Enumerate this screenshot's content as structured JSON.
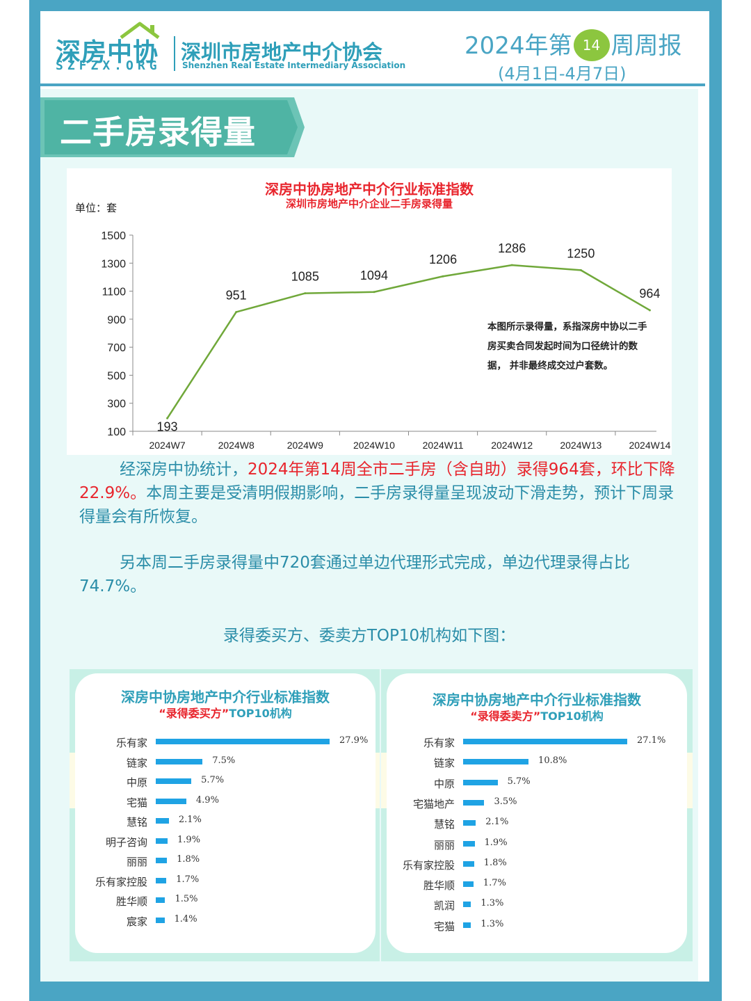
{
  "header": {
    "logo_cn": "深房中协",
    "logo_en": "SZFZX.ORG",
    "assoc_cn": "深圳市房地产中介协会",
    "assoc_en": "Shenzhen Real Estate Intermediary Association",
    "week_prefix": "2024年第",
    "week_num": "14",
    "week_suffix": "周周报",
    "date_range": "(4月1日-4月7日)"
  },
  "section_title": "二手房录得量",
  "chart_data": [
    {
      "type": "line",
      "title": "深房中协房地产中介行业标准指数",
      "subtitle": "深圳市房地产中介企业二手房录得量",
      "ylabel": "单位：套",
      "categories": [
        "2024W7",
        "2024W8",
        "2024W9",
        "2024W10",
        "2024W11",
        "2024W12",
        "2024W13",
        "2024W14"
      ],
      "values": [
        193,
        951,
        1085,
        1094,
        1206,
        1286,
        1250,
        964
      ],
      "ylim": [
        100,
        1500
      ],
      "yticks": [
        100,
        300,
        500,
        700,
        900,
        1100,
        1300,
        1500
      ],
      "color": "#70a83a",
      "note": "本图所示录得量，系指深房中协以二手房买卖合同发起时间为口径统计的数据， 并非最终成交过户套数。"
    },
    {
      "type": "bar",
      "orientation": "horizontal",
      "title": "深房中协房地产中介行业标准指数",
      "subtitle_red": "“录得委买方”",
      "subtitle_blue": "TOP10机构",
      "categories": [
        "乐有家",
        "链家",
        "中原",
        "宅猫",
        "慧铭",
        "明子咨询",
        "丽丽",
        "乐有家控股",
        "胜华顺",
        "宸家"
      ],
      "values": [
        27.9,
        7.5,
        5.7,
        4.9,
        2.1,
        1.9,
        1.8,
        1.7,
        1.5,
        1.4
      ],
      "labels": [
        "27.9%",
        "7.5%",
        "5.7%",
        "4.9%",
        "2.1%",
        "1.9%",
        "1.8%",
        "1.7%",
        "1.5%",
        "1.4%"
      ],
      "color": "#1fa3e4"
    },
    {
      "type": "bar",
      "orientation": "horizontal",
      "title": "深房中协房地产中介行业标准指数",
      "subtitle_red": "“录得委卖方”",
      "subtitle_blue": "TOP10机构",
      "categories": [
        "乐有家",
        "链家",
        "中原",
        "宅猫地产",
        "慧铭",
        "丽丽",
        "乐有家控股",
        "胜华顺",
        "凯润",
        "宅猫"
      ],
      "values": [
        27.1,
        10.8,
        5.7,
        3.5,
        2.1,
        1.9,
        1.8,
        1.7,
        1.3,
        1.3
      ],
      "labels": [
        "27.1%",
        "10.8%",
        "5.7%",
        "3.5%",
        "2.1%",
        "1.9%",
        "1.8%",
        "1.7%",
        "1.3%",
        "1.3%"
      ],
      "color": "#1fa3e4"
    }
  ],
  "paragraph1": {
    "lead": "经深房中协统计，",
    "highlight": "2024年第14周全市二手房（含自助）录得964套，环比下降22.9%。",
    "rest": "本周主要是受清明假期影响，二手房录得量呈现波动下滑走势，预计下周录得量会有所恢复。"
  },
  "paragraph2": "另本周二手房录得量中720套通过单边代理形式完成，单边代理录得占比74.7%。",
  "top10_heading": "录得委买方、委卖方TOP10机构如下图："
}
